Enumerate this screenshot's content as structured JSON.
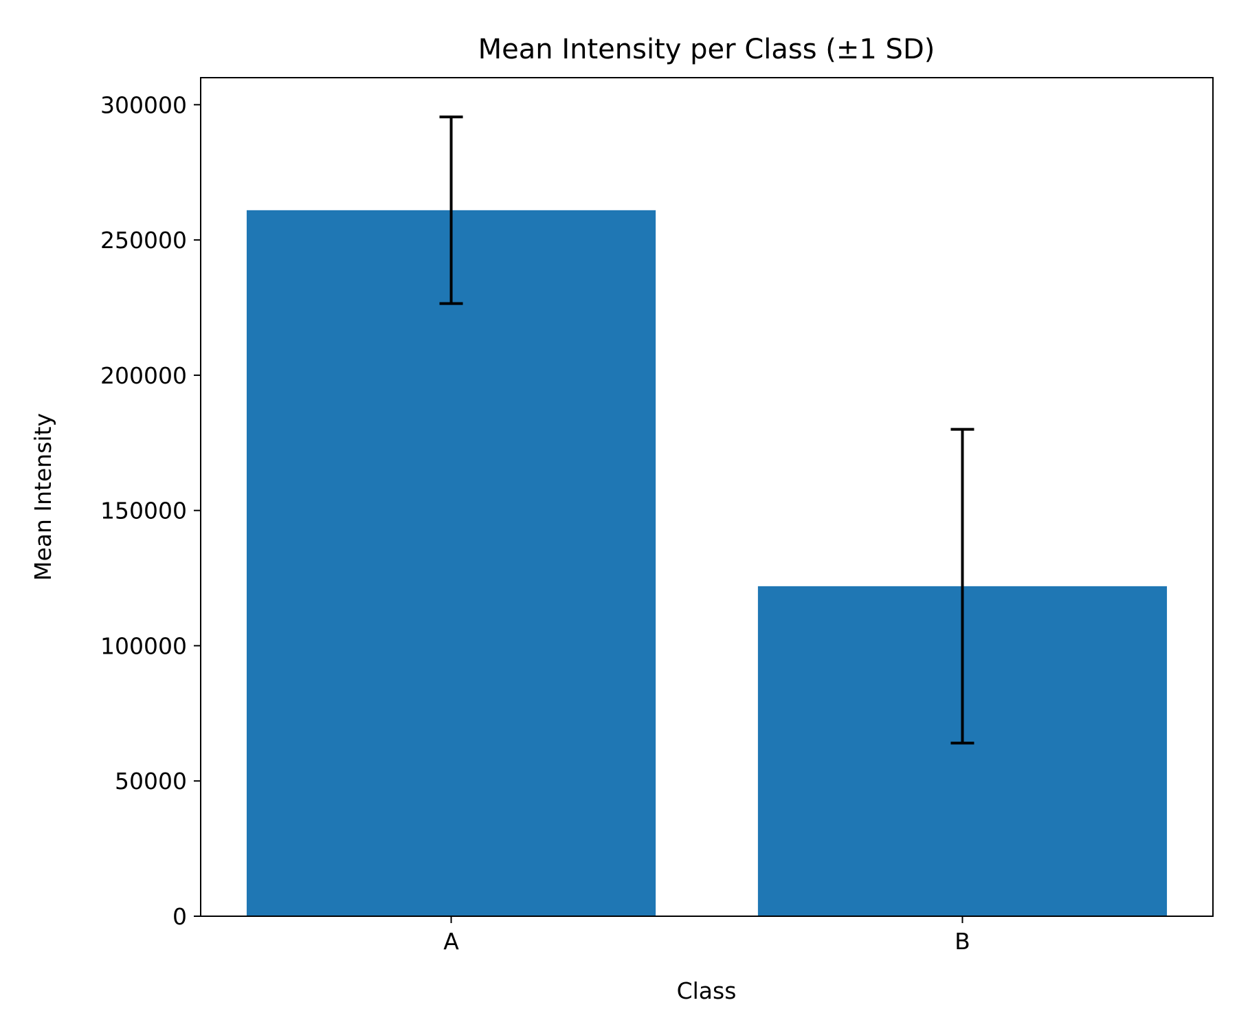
{
  "chart_data": {
    "type": "bar",
    "title": "Mean Intensity per Class (±1 SD)",
    "xlabel": "Class",
    "ylabel": "Mean Intensity",
    "categories": [
      "A",
      "B"
    ],
    "values": [
      261000,
      122000
    ],
    "error": [
      34500,
      58000
    ],
    "ylim": [
      0,
      310000
    ],
    "yticks": [
      0,
      50000,
      100000,
      150000,
      200000,
      250000,
      300000
    ],
    "grid": false,
    "legend": "none",
    "colors": {
      "bar": "#1f77b4",
      "error_bar": "#000000",
      "axes": "#000000",
      "background": "#ffffff"
    }
  }
}
